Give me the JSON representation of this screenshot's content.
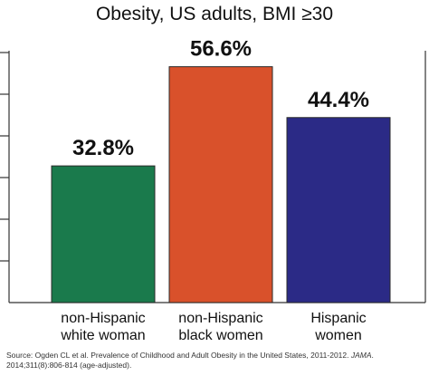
{
  "chart_data": {
    "type": "bar",
    "title": "Obesity, US adults, BMI ≥30",
    "categories": [
      [
        "non-Hispanic",
        "white woman"
      ],
      [
        "non-Hispanic",
        "black women"
      ],
      [
        "Hispanic",
        "women"
      ]
    ],
    "values": [
      32.8,
      56.6,
      44.4
    ],
    "value_labels": [
      "32.8%",
      "56.6%",
      "44.4%"
    ],
    "colors": [
      "#1a7a4c",
      "#d9512b",
      "#2b2a86"
    ],
    "ylim": [
      0,
      60
    ],
    "xlabel": "",
    "ylabel": "",
    "grid": false
  },
  "source": {
    "prefix": "Source: Ogden CL et al. Prevalence of Childhood and Adult Obesity in the United States, 2011-2012. ",
    "journal": "JAMA",
    "suffix": ". 2014;311(8):806-814 (age-adjusted)."
  }
}
